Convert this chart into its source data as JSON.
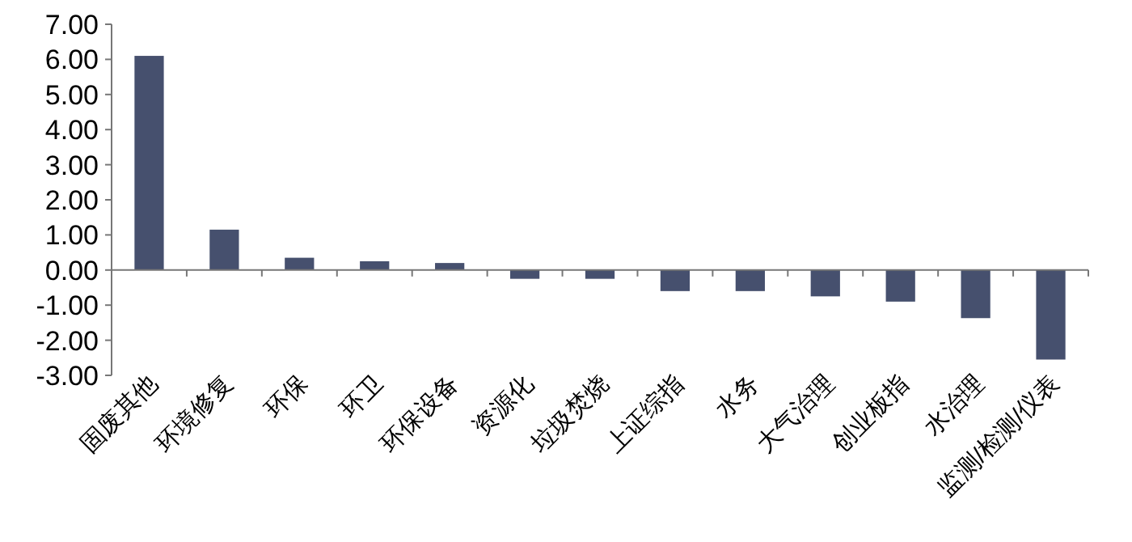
{
  "chart_data": {
    "type": "bar",
    "categories": [
      "固废其他",
      "环境修复",
      "环保",
      "环卫",
      "环保设备",
      "资源化",
      "垃圾焚烧",
      "上证综指",
      "水务",
      "大气治理",
      "创业板指",
      "水治理",
      "监测/检测/仪表"
    ],
    "values": [
      6.1,
      1.15,
      0.35,
      0.25,
      0.2,
      -0.25,
      -0.25,
      -0.6,
      -0.6,
      -0.75,
      -0.9,
      -1.37,
      -2.55
    ],
    "color": "#46506e",
    "ylim": [
      -3,
      7
    ],
    "yticks": [
      {
        "value": -3,
        "label": "-3.00"
      },
      {
        "value": -2,
        "label": "-2.00"
      },
      {
        "value": -1,
        "label": "-1.00"
      },
      {
        "value": 0,
        "label": "0.00"
      },
      {
        "value": 1,
        "label": "1.00"
      },
      {
        "value": 2,
        "label": "2.00"
      },
      {
        "value": 3,
        "label": "3.00"
      },
      {
        "value": 4,
        "label": "4.00"
      },
      {
        "value": 5,
        "label": "5.00"
      },
      {
        "value": 6,
        "label": "6.00"
      },
      {
        "value": 7,
        "label": "7.00"
      }
    ]
  }
}
